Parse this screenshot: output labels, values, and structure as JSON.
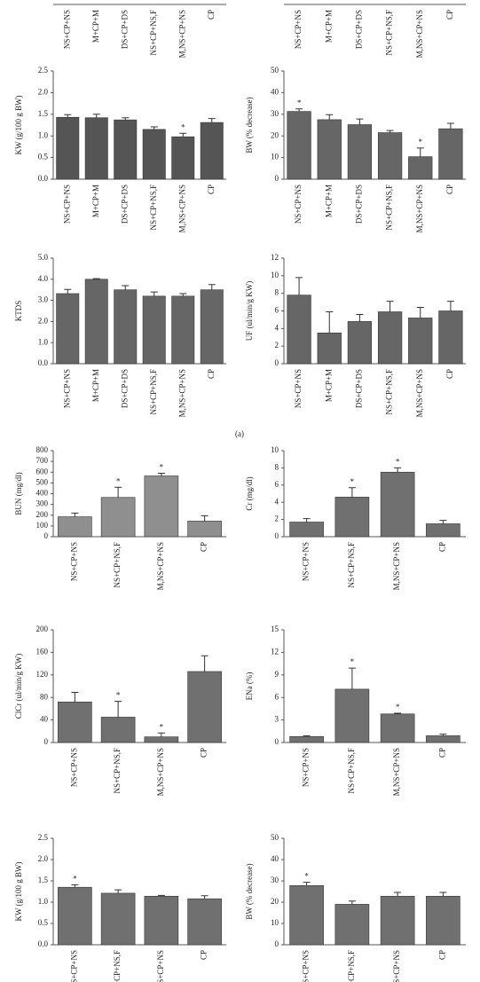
{
  "figure_label": "(a)",
  "chart_data": [
    {
      "type": "bar",
      "categories": [
        "NS+CP+NS",
        "M+CP+M",
        "DS+CP+DS",
        "NS+CP+NS,F",
        "M,NS+CP+NS",
        "CP"
      ]
    },
    {
      "type": "bar",
      "categories": [
        "NS+CP+NS",
        "M+CP+M",
        "DS+CP+DS",
        "NS+CP+NS,F",
        "M,NS+CP+NS",
        "CP"
      ]
    },
    {
      "type": "bar",
      "y_label": "KW (g/100 g BW)",
      "color": "#555555",
      "categories": [
        "NS+CP+NS",
        "M+CP+M",
        "DS+CP+DS",
        "NS+CP+NS,F",
        "M,NS+CP+NS",
        "CP"
      ],
      "values": [
        1.43,
        1.42,
        1.37,
        1.15,
        0.98,
        1.31
      ],
      "errors": [
        0.06,
        0.08,
        0.05,
        0.06,
        0.08,
        0.09
      ],
      "significance": [
        null,
        null,
        null,
        null,
        "*",
        null
      ],
      "ylim": [
        0,
        2.5
      ],
      "yticks": [
        {
          "value": 0,
          "label": "0.0"
        },
        {
          "value": 0.5,
          "label": "0.5"
        },
        {
          "value": 1,
          "label": "1.0"
        },
        {
          "value": 1.5,
          "label": "1.5"
        },
        {
          "value": 2,
          "label": "2.0"
        },
        {
          "value": 2.5,
          "label": "2.5"
        }
      ]
    },
    {
      "type": "bar",
      "y_label": "BW (% decrease)",
      "color": "#666666",
      "categories": [
        "NS+CP+NS",
        "M+CP+M",
        "DS+CP+DS",
        "NS+CP+NS,F",
        "M,NS+CP+NS",
        "CP"
      ],
      "values": [
        31.3,
        27.5,
        25.2,
        21.5,
        10.4,
        23.3
      ],
      "errors": [
        1.2,
        2.3,
        2.6,
        1.0,
        4.0,
        2.5
      ],
      "significance": [
        "*",
        null,
        null,
        null,
        "*",
        null
      ],
      "ylim": [
        0,
        50
      ],
      "yticks": [
        0,
        10,
        20,
        30,
        40,
        50
      ]
    },
    {
      "type": "bar",
      "y_label": "KTDS",
      "color": "#666666",
      "categories": [
        "NS+CP+NS",
        "M+CP+M",
        "DS+CP+DS",
        "NS+CP+NS,F",
        "M,NS+CP+NS",
        "CP"
      ],
      "values": [
        3.32,
        4.0,
        3.5,
        3.2,
        3.2,
        3.5
      ],
      "errors": [
        0.2,
        0.03,
        0.2,
        0.2,
        0.12,
        0.25
      ],
      "ylim": [
        0,
        5
      ],
      "yticks": [
        {
          "value": 0,
          "label": "0.0"
        },
        {
          "value": 1,
          "label": "1.0"
        },
        {
          "value": 2,
          "label": "2.0"
        },
        {
          "value": 3,
          "label": "3.0"
        },
        {
          "value": 4,
          "label": "4.0"
        },
        {
          "value": 5,
          "label": "5.0"
        }
      ]
    },
    {
      "type": "bar",
      "y_label": "UF (ul/min/g KW)",
      "color": "#666666",
      "categories": [
        "NS+CP+NS",
        "M+CP+M",
        "DS+CP+DS",
        "NS+CP+NS,F",
        "M,NS+CP+NS",
        "CP"
      ],
      "values": [
        7.8,
        3.5,
        4.8,
        5.9,
        5.2,
        6.0
      ],
      "errors": [
        2.0,
        2.4,
        0.8,
        1.2,
        1.2,
        1.1
      ],
      "ylim": [
        0,
        12
      ],
      "yticks": [
        0,
        2,
        4,
        6,
        8,
        10,
        12
      ]
    },
    {
      "type": "bar",
      "y_label": "BUN (mg/dl)",
      "color": "#8f8f8f",
      "categories": [
        "NS+CP+NS",
        "NS+CP+NS,F",
        "M,NS+CP+NS",
        "CP"
      ],
      "values": [
        185,
        365,
        565,
        145
      ],
      "errors": [
        35,
        95,
        25,
        50
      ],
      "significance": [
        null,
        "*",
        "*",
        null
      ],
      "ylim": [
        0,
        800
      ],
      "yticks": [
        0,
        100,
        200,
        300,
        400,
        500,
        600,
        700,
        800
      ]
    },
    {
      "type": "bar",
      "y_label": "Cr (mg/dl)",
      "color": "#707070",
      "categories": [
        "NS+CP+NS",
        "NS+CP+NS,F",
        "M,NS+CP+NS",
        "CP"
      ],
      "values": [
        1.7,
        4.6,
        7.5,
        1.5
      ],
      "errors": [
        0.4,
        1.1,
        0.5,
        0.4
      ],
      "significance": [
        null,
        "*",
        "*",
        null
      ],
      "ylim": [
        0,
        10
      ],
      "yticks": [
        0,
        2,
        4,
        6,
        8,
        10
      ]
    },
    {
      "type": "bar",
      "y_label": "ClCr (ul/min/g KW)",
      "color": "#707070",
      "categories": [
        "NS+CP+NS",
        "NS+CP+NS,F",
        "M,NS+CP+NS",
        "CP"
      ],
      "values": [
        72,
        45,
        10,
        126
      ],
      "errors": [
        17,
        28,
        7,
        28
      ],
      "significance": [
        null,
        "*",
        "*",
        null
      ],
      "ylim": [
        0,
        200
      ],
      "yticks": [
        0,
        40,
        80,
        120,
        160,
        200
      ]
    },
    {
      "type": "bar",
      "y_label": "ENa (%)",
      "color": "#707070",
      "categories": [
        "NS+CP+NS",
        "NS+CP+NS,F",
        "M,NS+CP+NS",
        "CP"
      ],
      "values": [
        0.8,
        7.1,
        3.8,
        0.9
      ],
      "errors": [
        0.1,
        2.8,
        0.1,
        0.2
      ],
      "significance": [
        null,
        "*",
        "*",
        null
      ],
      "ylim": [
        0,
        15
      ],
      "yticks": [
        0,
        3,
        6,
        9,
        12,
        15
      ]
    },
    {
      "type": "bar",
      "y_label": "KW (g/100 g BW)",
      "color": "#707070",
      "categories": [
        "NS+CP+NS",
        "NS+CP+NS,F",
        "M,NS+CP+NS",
        "CP"
      ],
      "values": [
        1.35,
        1.21,
        1.14,
        1.08
      ],
      "errors": [
        0.06,
        0.08,
        0.02,
        0.07
      ],
      "significance": [
        "*",
        null,
        null,
        null
      ],
      "ylim": [
        0,
        2.5
      ],
      "yticks": [
        {
          "value": 0,
          "label": "0.0"
        },
        {
          "value": 0.5,
          "label": "0.5"
        },
        {
          "value": 1,
          "label": "1.0"
        },
        {
          "value": 1.5,
          "label": "1.5"
        },
        {
          "value": 2,
          "label": "2.0"
        },
        {
          "value": 2.5,
          "label": "2.5"
        }
      ]
    },
    {
      "type": "bar",
      "y_label": "BW (% decrease)",
      "color": "#707070",
      "categories": [
        "NS+CP+NS",
        "NS+CP+NS,F",
        "M,NS+CP+NS",
        "CP"
      ],
      "values": [
        27.8,
        19,
        22.8,
        22.8
      ],
      "errors": [
        1.5,
        1.5,
        1.8,
        1.8
      ],
      "significance": [
        "*",
        null,
        null,
        null
      ],
      "ylim": [
        0,
        50
      ],
      "yticks": [
        0,
        10,
        20,
        30,
        40,
        50
      ]
    }
  ]
}
